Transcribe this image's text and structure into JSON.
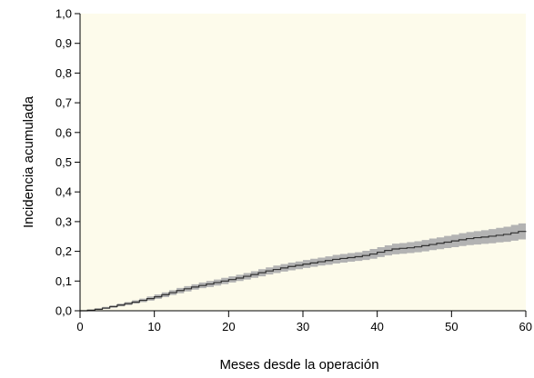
{
  "chart_data": {
    "type": "line",
    "title": "",
    "xlabel": "Meses desde la operación",
    "ylabel": "Incidencia acumulada",
    "xlim": [
      0,
      60
    ],
    "ylim": [
      0,
      1
    ],
    "grid": false,
    "legend": "none",
    "x_ticks": [
      "0",
      "10",
      "20",
      "30",
      "40",
      "50",
      "60"
    ],
    "y_ticks": [
      "0,0",
      "0,1",
      "0,2",
      "0,3",
      "0,4",
      "0,5",
      "0,6",
      "0,7",
      "0,8",
      "0,9",
      "1,0"
    ],
    "colors": {
      "plot_background": "#fdfbeb",
      "line": "#333333",
      "band": "#b3b3b3"
    },
    "series": [
      {
        "x": [
          0,
          1,
          2,
          3,
          4,
          5,
          6,
          7,
          8,
          9,
          10,
          11,
          12,
          13,
          14,
          15,
          16,
          17,
          18,
          19,
          20,
          21,
          22,
          23,
          24,
          25,
          26,
          27,
          28,
          29,
          30,
          31,
          32,
          33,
          34,
          35,
          36,
          37,
          38,
          39,
          40,
          41,
          42,
          43,
          44,
          45,
          46,
          47,
          48,
          49,
          50,
          51,
          52,
          53,
          54,
          55,
          56,
          57,
          58,
          59,
          60
        ],
        "y": [
          0.0,
          0.002,
          0.005,
          0.009,
          0.014,
          0.019,
          0.024,
          0.029,
          0.035,
          0.041,
          0.047,
          0.054,
          0.061,
          0.068,
          0.074,
          0.08,
          0.085,
          0.09,
          0.095,
          0.1,
          0.105,
          0.11,
          0.116,
          0.122,
          0.128,
          0.134,
          0.139,
          0.144,
          0.149,
          0.153,
          0.157,
          0.161,
          0.165,
          0.169,
          0.173,
          0.176,
          0.179,
          0.182,
          0.186,
          0.191,
          0.197,
          0.203,
          0.208,
          0.21,
          0.212,
          0.215,
          0.219,
          0.223,
          0.227,
          0.231,
          0.235,
          0.239,
          0.243,
          0.246,
          0.248,
          0.251,
          0.254,
          0.257,
          0.262,
          0.267,
          0.268
        ],
        "lower": [
          0.0,
          0.001,
          0.003,
          0.006,
          0.01,
          0.015,
          0.019,
          0.024,
          0.029,
          0.034,
          0.04,
          0.046,
          0.053,
          0.059,
          0.065,
          0.071,
          0.076,
          0.08,
          0.085,
          0.09,
          0.095,
          0.1,
          0.105,
          0.111,
          0.116,
          0.122,
          0.127,
          0.132,
          0.136,
          0.14,
          0.144,
          0.148,
          0.152,
          0.155,
          0.159,
          0.162,
          0.165,
          0.168,
          0.171,
          0.175,
          0.181,
          0.186,
          0.19,
          0.192,
          0.194,
          0.197,
          0.2,
          0.204,
          0.207,
          0.211,
          0.214,
          0.218,
          0.221,
          0.223,
          0.225,
          0.227,
          0.23,
          0.232,
          0.236,
          0.24,
          0.241
        ],
        "upper": [
          0.0,
          0.004,
          0.008,
          0.013,
          0.018,
          0.024,
          0.029,
          0.035,
          0.041,
          0.048,
          0.055,
          0.062,
          0.069,
          0.077,
          0.083,
          0.089,
          0.095,
          0.1,
          0.105,
          0.111,
          0.116,
          0.121,
          0.127,
          0.133,
          0.14,
          0.146,
          0.152,
          0.157,
          0.162,
          0.166,
          0.171,
          0.175,
          0.179,
          0.183,
          0.188,
          0.191,
          0.194,
          0.197,
          0.202,
          0.208,
          0.214,
          0.22,
          0.226,
          0.228,
          0.231,
          0.234,
          0.238,
          0.243,
          0.247,
          0.252,
          0.256,
          0.261,
          0.265,
          0.268,
          0.271,
          0.275,
          0.279,
          0.283,
          0.289,
          0.294,
          0.296
        ]
      }
    ]
  }
}
